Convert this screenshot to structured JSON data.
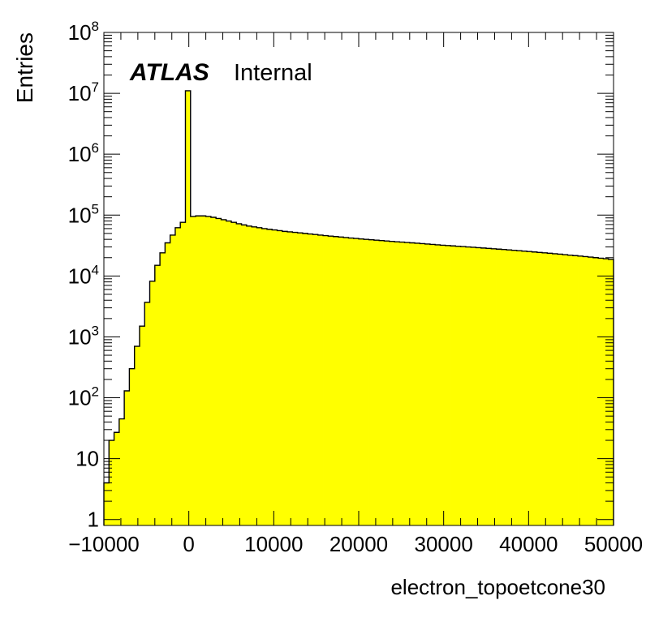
{
  "chart_data": {
    "type": "histogram",
    "xlabel": "electron_topoetcone30",
    "ylabel": "Entries",
    "xlim": [
      -10000,
      50000
    ],
    "ylim": [
      0.8,
      100000000
    ],
    "yscale": "log",
    "bin_width": 600,
    "fill_color": "#ffff00",
    "line_color": "#000000",
    "x_ticks": [
      "−10000",
      "0",
      "10000",
      "20000",
      "30000",
      "40000",
      "50000"
    ],
    "y_ticks": [
      {
        "value": 1,
        "base": "1",
        "exp": ""
      },
      {
        "value": 10,
        "base": "10",
        "exp": ""
      },
      {
        "value": 100,
        "base": "10",
        "exp": "2"
      },
      {
        "value": 1000,
        "base": "10",
        "exp": "3"
      },
      {
        "value": 10000,
        "base": "10",
        "exp": "4"
      },
      {
        "value": 100000,
        "base": "10",
        "exp": "5"
      },
      {
        "value": 1000000,
        "base": "10",
        "exp": "6"
      },
      {
        "value": 10000000,
        "base": "10",
        "exp": "7"
      },
      {
        "value": 100000000,
        "base": "10",
        "exp": "8"
      }
    ],
    "annotation": {
      "bold": "ATLAS",
      "normal": "Internal"
    },
    "values": [
      4,
      20,
      27,
      45,
      130,
      300,
      700,
      1500,
      3700,
      8200,
      15000,
      24000,
      35000,
      47000,
      62000,
      76000,
      11000000,
      95000,
      97000,
      97000,
      95000,
      92000,
      88000,
      84000,
      80000,
      76000,
      72000,
      69000,
      66000,
      64000,
      62000,
      60000,
      58500,
      57000,
      55500,
      54000,
      53000,
      52000,
      51000,
      50000,
      49000,
      48000,
      47000,
      46000,
      45200,
      44400,
      43600,
      42800,
      42000,
      41300,
      40600,
      40000,
      39400,
      38800,
      38200,
      37600,
      37000,
      36500,
      36000,
      35500,
      35000,
      34500,
      34000,
      33500,
      33000,
      32500,
      32000,
      31600,
      31200,
      30800,
      30400,
      30000,
      29600,
      29200,
      28800,
      28400,
      28000,
      27600,
      27200,
      26800,
      26400,
      26000,
      25600,
      25200,
      24800,
      24400,
      24000,
      23600,
      23200,
      22800,
      22400,
      22000,
      21600,
      21200,
      20800,
      20400,
      20000,
      19600,
      19200,
      18800
    ]
  }
}
